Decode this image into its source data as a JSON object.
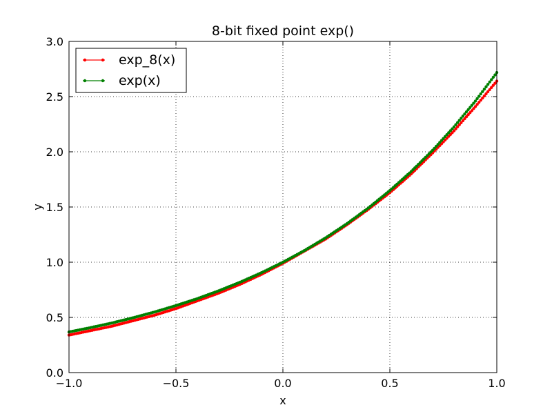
{
  "chart_data": {
    "type": "line",
    "title": "8-bit fixed point exp()",
    "xlabel": "x",
    "ylabel": "y",
    "xlim": [
      -1.0,
      1.0
    ],
    "ylim": [
      0.0,
      3.0
    ],
    "xticks": [
      "−1.0",
      "−0.5",
      "0.0",
      "0.5",
      "1.0"
    ],
    "xtick_values": [
      -1.0,
      -0.5,
      0.0,
      0.5,
      1.0
    ],
    "yticks": [
      "0.0",
      "0.5",
      "1.0",
      "1.5",
      "2.0",
      "2.5",
      "3.0"
    ],
    "ytick_values": [
      0.0,
      0.5,
      1.0,
      1.5,
      2.0,
      2.5,
      3.0
    ],
    "grid": true,
    "legend_position": "upper-left",
    "series": [
      {
        "name": "exp_8(x)",
        "color": "#ff0000",
        "marker": "dot",
        "x": [
          -1.0,
          -0.9,
          -0.8,
          -0.7,
          -0.6,
          -0.5,
          -0.4,
          -0.3,
          -0.2,
          -0.1,
          0.0,
          0.1,
          0.2,
          0.3,
          0.4,
          0.5,
          0.6,
          0.7,
          0.8,
          0.9,
          1.0
        ],
        "y": [
          0.34,
          0.38,
          0.42,
          0.47,
          0.52,
          0.58,
          0.65,
          0.72,
          0.8,
          0.89,
          0.99,
          1.1,
          1.21,
          1.34,
          1.48,
          1.63,
          1.8,
          1.99,
          2.19,
          2.41,
          2.64
        ]
      },
      {
        "name": "exp(x)",
        "color": "#008000",
        "marker": "dot",
        "x": [
          -1.0,
          -0.9,
          -0.8,
          -0.7,
          -0.6,
          -0.5,
          -0.4,
          -0.3,
          -0.2,
          -0.1,
          0.0,
          0.1,
          0.2,
          0.3,
          0.4,
          0.5,
          0.6,
          0.7,
          0.8,
          0.9,
          1.0
        ],
        "y": [
          0.368,
          0.407,
          0.449,
          0.497,
          0.549,
          0.607,
          0.67,
          0.741,
          0.819,
          0.905,
          1.0,
          1.105,
          1.221,
          1.35,
          1.492,
          1.649,
          1.822,
          2.014,
          2.226,
          2.46,
          2.718
        ]
      }
    ]
  }
}
